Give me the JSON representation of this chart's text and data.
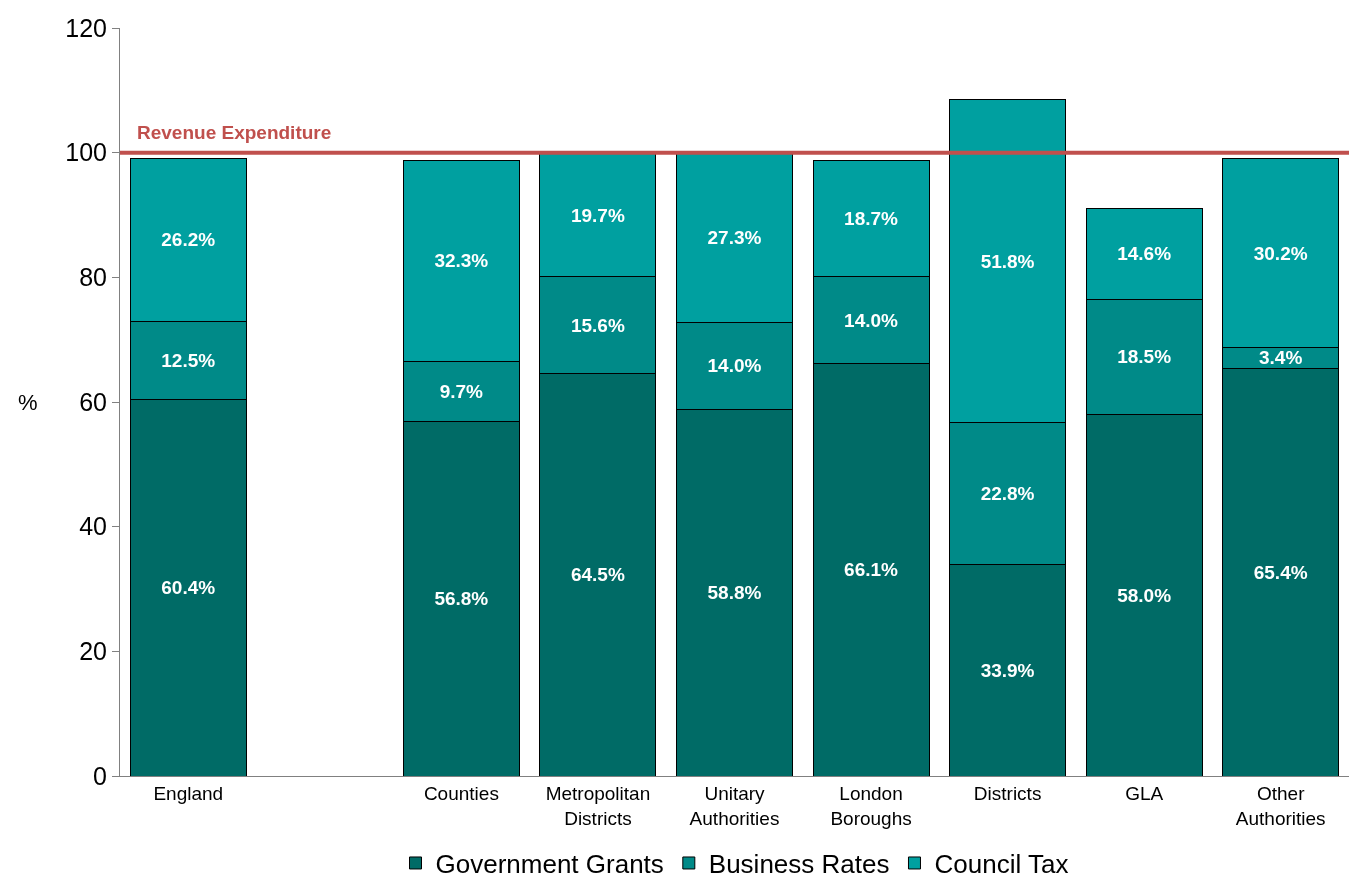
{
  "chart_data": {
    "type": "bar",
    "stacked": true,
    "ylabel": "%",
    "categories": [
      "England",
      null,
      "Counties",
      "Metropolitan Districts",
      "Unitary Authorities",
      "London Boroughs",
      "Districts",
      "GLA",
      "Other Authorities"
    ],
    "series": [
      {
        "name": "Government Grants",
        "color": "#006b66",
        "values": [
          60.4,
          null,
          56.8,
          64.5,
          58.8,
          66.1,
          33.9,
          58.0,
          65.4
        ],
        "value_labels": [
          "60.4%",
          null,
          "56.8%",
          "64.5%",
          "58.8%",
          "66.1%",
          "33.9%",
          "58.0%",
          "65.4%"
        ]
      },
      {
        "name": "Business Rates",
        "color": "#008a88",
        "values": [
          12.5,
          null,
          9.7,
          15.6,
          14.0,
          14.0,
          22.8,
          18.5,
          3.4
        ],
        "value_labels": [
          "12.5%",
          null,
          "9.7%",
          "15.6%",
          "14.0%",
          "14.0%",
          "22.8%",
          "18.5%",
          "3.4%"
        ]
      },
      {
        "name": "Council Tax",
        "color": "#00a0a0",
        "values": [
          26.2,
          null,
          32.3,
          19.7,
          27.3,
          18.7,
          51.8,
          14.6,
          30.2
        ],
        "value_labels": [
          "26.2%",
          null,
          "32.3%",
          "19.7%",
          "27.3%",
          "18.7%",
          "51.8%",
          "14.6%",
          "30.2%"
        ]
      }
    ],
    "ylim": [
      0,
      120
    ],
    "yticks": [
      0,
      20,
      40,
      60,
      80,
      100,
      120
    ],
    "ref_lines": [
      {
        "axis": "y",
        "value": 100,
        "label": "Revenue Expenditure",
        "color": "#c0504d",
        "line_style": "solid"
      }
    ],
    "legend": "bottom"
  }
}
